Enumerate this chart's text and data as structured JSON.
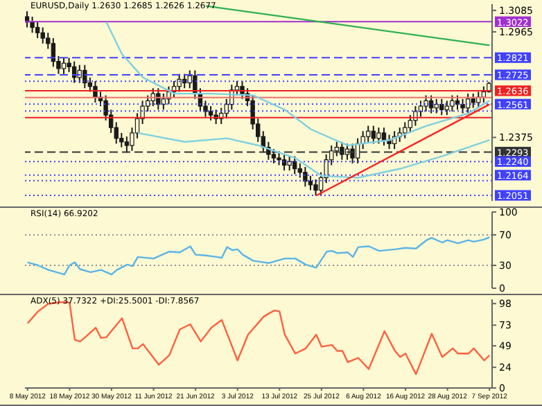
{
  "chart_data": [
    {
      "type": "candlestick",
      "title": "EURUSD,Daily  1.2630 1.2685 1.2626 1.2677",
      "color": "#1a1a1a",
      "ohlc": [
        [
          1.305,
          1.308,
          1.299,
          1.302
        ],
        [
          1.302,
          1.305,
          1.296,
          1.299
        ],
        [
          1.299,
          1.302,
          1.293,
          1.296
        ],
        [
          1.296,
          1.299,
          1.29,
          1.293
        ],
        [
          1.293,
          1.296,
          1.287,
          1.29
        ],
        [
          1.29,
          1.293,
          1.277,
          1.28
        ],
        [
          1.28,
          1.283,
          1.273,
          1.276
        ],
        [
          1.276,
          1.282,
          1.273,
          1.279
        ],
        [
          1.279,
          1.282,
          1.274,
          1.277
        ],
        [
          1.277,
          1.28,
          1.268,
          1.271
        ],
        [
          1.271,
          1.278,
          1.268,
          1.275
        ],
        [
          1.275,
          1.278,
          1.265,
          1.268
        ],
        [
          1.268,
          1.271,
          1.263,
          1.266
        ],
        [
          1.266,
          1.269,
          1.257,
          1.26
        ],
        [
          1.26,
          1.263,
          1.255,
          1.258
        ],
        [
          1.258,
          1.261,
          1.247,
          1.25
        ],
        [
          1.25,
          1.253,
          1.24,
          1.243
        ],
        [
          1.243,
          1.246,
          1.234,
          1.237
        ],
        [
          1.237,
          1.24,
          1.232,
          1.235
        ],
        [
          1.235,
          1.238,
          1.229,
          1.233
        ],
        [
          1.233,
          1.243,
          1.23,
          1.24
        ],
        [
          1.24,
          1.251,
          1.237,
          1.248
        ],
        [
          1.248,
          1.258,
          1.245,
          1.255
        ],
        [
          1.255,
          1.261,
          1.252,
          1.258
        ],
        [
          1.258,
          1.265,
          1.255,
          1.262
        ],
        [
          1.262,
          1.265,
          1.253,
          1.256
        ],
        [
          1.256,
          1.262,
          1.253,
          1.259
        ],
        [
          1.259,
          1.266,
          1.256,
          1.263
        ],
        [
          1.263,
          1.269,
          1.26,
          1.266
        ],
        [
          1.266,
          1.273,
          1.263,
          1.27
        ],
        [
          1.27,
          1.273,
          1.265,
          1.268
        ],
        [
          1.268,
          1.275,
          1.265,
          1.272
        ],
        [
          1.272,
          1.275,
          1.259,
          1.262
        ],
        [
          1.262,
          1.265,
          1.252,
          1.255
        ],
        [
          1.255,
          1.258,
          1.249,
          1.252
        ],
        [
          1.252,
          1.255,
          1.247,
          1.25
        ],
        [
          1.25,
          1.253,
          1.245,
          1.248
        ],
        [
          1.248,
          1.254,
          1.245,
          1.251
        ],
        [
          1.251,
          1.259,
          1.248,
          1.256
        ],
        [
          1.256,
          1.267,
          1.253,
          1.264
        ],
        [
          1.264,
          1.269,
          1.261,
          1.266
        ],
        [
          1.266,
          1.269,
          1.259,
          1.262
        ],
        [
          1.262,
          1.265,
          1.255,
          1.258
        ],
        [
          1.258,
          1.261,
          1.242,
          1.245
        ],
        [
          1.245,
          1.248,
          1.235,
          1.238
        ],
        [
          1.238,
          1.241,
          1.229,
          1.232
        ],
        [
          1.232,
          1.235,
          1.225,
          1.228
        ],
        [
          1.228,
          1.231,
          1.223,
          1.226
        ],
        [
          1.226,
          1.229,
          1.222,
          1.225
        ],
        [
          1.225,
          1.228,
          1.219,
          1.222
        ],
        [
          1.222,
          1.227,
          1.219,
          1.224
        ],
        [
          1.224,
          1.227,
          1.217,
          1.22
        ],
        [
          1.22,
          1.223,
          1.215,
          1.218
        ],
        [
          1.218,
          1.221,
          1.21,
          1.213
        ],
        [
          1.213,
          1.216,
          1.208,
          1.211
        ],
        [
          1.211,
          1.214,
          1.205,
          1.208
        ],
        [
          1.208,
          1.218,
          1.205,
          1.215
        ],
        [
          1.215,
          1.228,
          1.212,
          1.225
        ],
        [
          1.225,
          1.233,
          1.222,
          1.23
        ],
        [
          1.23,
          1.235,
          1.227,
          1.232
        ],
        [
          1.232,
          1.235,
          1.225,
          1.228
        ],
        [
          1.228,
          1.234,
          1.225,
          1.231
        ],
        [
          1.231,
          1.234,
          1.223,
          1.226
        ],
        [
          1.226,
          1.237,
          1.223,
          1.234
        ],
        [
          1.234,
          1.241,
          1.231,
          1.238
        ],
        [
          1.238,
          1.244,
          1.235,
          1.241
        ],
        [
          1.241,
          1.244,
          1.234,
          1.237
        ],
        [
          1.237,
          1.243,
          1.234,
          1.24
        ],
        [
          1.24,
          1.243,
          1.233,
          1.236
        ],
        [
          1.236,
          1.239,
          1.231,
          1.234
        ],
        [
          1.234,
          1.241,
          1.231,
          1.238
        ],
        [
          1.238,
          1.243,
          1.235,
          1.24
        ],
        [
          1.24,
          1.246,
          1.237,
          1.243
        ],
        [
          1.243,
          1.25,
          1.24,
          1.247
        ],
        [
          1.247,
          1.255,
          1.244,
          1.252
        ],
        [
          1.252,
          1.258,
          1.249,
          1.255
        ],
        [
          1.255,
          1.261,
          1.252,
          1.258
        ],
        [
          1.258,
          1.261,
          1.251,
          1.254
        ],
        [
          1.254,
          1.259,
          1.251,
          1.256
        ],
        [
          1.256,
          1.259,
          1.25,
          1.253
        ],
        [
          1.253,
          1.258,
          1.25,
          1.255
        ],
        [
          1.255,
          1.261,
          1.252,
          1.258
        ],
        [
          1.258,
          1.261,
          1.253,
          1.256
        ],
        [
          1.256,
          1.259,
          1.251,
          1.254
        ],
        [
          1.254,
          1.262,
          1.251,
          1.259
        ],
        [
          1.259,
          1.262,
          1.254,
          1.257
        ],
        [
          1.257,
          1.263,
          1.254,
          1.26
        ],
        [
          1.26,
          1.266,
          1.257,
          1.263
        ],
        [
          1.263,
          1.2685,
          1.2626,
          1.2677
        ]
      ],
      "series": [
        {
          "type": "line",
          "color": "#7fd0e0",
          "values": [
            null,
            null,
            null,
            null,
            null,
            null,
            null,
            null,
            null,
            null,
            null,
            null,
            null,
            null,
            null,
            1.302,
            null,
            null,
            1.284,
            null,
            null,
            null,
            1.271,
            null,
            null,
            null,
            null,
            null,
            1.262,
            null,
            null,
            null,
            null,
            null,
            null,
            1.262,
            null,
            null,
            null,
            null,
            null,
            null,
            null,
            1.261,
            null,
            null,
            null,
            null,
            null,
            1.253,
            null,
            null,
            null,
            null,
            1.242,
            null,
            null,
            null,
            null,
            null,
            null,
            1.233,
            null,
            null,
            null,
            null,
            null,
            null,
            null,
            1.236,
            null,
            null,
            null,
            null,
            null,
            null,
            1.244,
            null,
            null,
            null,
            null,
            null,
            null,
            null,
            1.251,
            null,
            null,
            null,
            1.258
          ]
        },
        {
          "type": "line",
          "color": "#7fd0e0",
          "values": [
            null,
            null,
            null,
            null,
            null,
            null,
            null,
            null,
            null,
            null,
            null,
            null,
            null,
            null,
            null,
            null,
            null,
            null,
            null,
            null,
            null,
            1.24,
            null,
            null,
            null,
            null,
            null,
            null,
            null,
            null,
            1.235,
            null,
            null,
            null,
            null,
            null,
            null,
            null,
            1.237,
            null,
            null,
            null,
            null,
            null,
            1.233,
            null,
            null,
            null,
            null,
            null,
            null,
            1.226,
            null,
            null,
            null,
            null,
            1.216,
            null,
            null,
            null,
            null,
            null,
            null,
            1.215,
            null,
            null,
            null,
            null,
            null,
            null,
            null,
            1.22,
            null,
            null,
            null,
            null,
            null,
            null,
            null,
            1.227,
            null,
            null,
            null,
            null,
            null,
            null,
            null,
            null,
            1.236
          ]
        },
        {
          "type": "line",
          "color": "#ff2020",
          "values": [
            null,
            null,
            null,
            null,
            null,
            null,
            null,
            null,
            null,
            null,
            null,
            null,
            null,
            null,
            null,
            null,
            null,
            null,
            null,
            null,
            null,
            null,
            null,
            null,
            null,
            null,
            null,
            null,
            null,
            null,
            null,
            null,
            null,
            null,
            null,
            null,
            null,
            null,
            null,
            null,
            null,
            null,
            null,
            null,
            null,
            null,
            null,
            null,
            null,
            null,
            null,
            null,
            null,
            null,
            null,
            1.205,
            null,
            null,
            null,
            null,
            null,
            null,
            null,
            null,
            null,
            null,
            null,
            null,
            null,
            null,
            null,
            null,
            null,
            null,
            null,
            null,
            null,
            null,
            null,
            null,
            null,
            null,
            null,
            null,
            null,
            null,
            null,
            null,
            1.256
          ]
        },
        {
          "type": "line",
          "color": "#30b050",
          "values": [
            null,
            null,
            null,
            null,
            null,
            null,
            null,
            null,
            null,
            null,
            null,
            null,
            null,
            null,
            null,
            null,
            null,
            null,
            null,
            null,
            null,
            null,
            null,
            null,
            null,
            null,
            null,
            null,
            null,
            null,
            null,
            null,
            null,
            null,
            1.311,
            null,
            null,
            null,
            null,
            null,
            null,
            null,
            null,
            null,
            null,
            null,
            null,
            null,
            null,
            null,
            null,
            null,
            null,
            null,
            null,
            null,
            null,
            null,
            null,
            null,
            null,
            null,
            null,
            null,
            null,
            null,
            null,
            null,
            null,
            null,
            null,
            null,
            null,
            null,
            null,
            null,
            null,
            null,
            null,
            null,
            null,
            null,
            null,
            null,
            null,
            null,
            null,
            null,
            1.289
          ]
        }
      ],
      "ylim": [
        1.202,
        1.312
      ],
      "yticks": [
        1.3085,
        1.2965,
        1.2375
      ],
      "ref_lines": [
        {
          "axis": "y",
          "value": 1.3022,
          "label": "1.3022",
          "color": "#a030d0",
          "line_style": "solid"
        },
        {
          "axis": "y",
          "value": 1.2821,
          "label": "1.2821",
          "color": "#4040ff",
          "line_style": "dashed"
        },
        {
          "axis": "y",
          "value": 1.2725,
          "label": "1.2725",
          "color": "#4040ff",
          "line_style": "dashed"
        },
        {
          "axis": "y",
          "value": 1.2689,
          "color": "#4040ff",
          "line_style": "dotted"
        },
        {
          "axis": "y",
          "value": 1.2636,
          "label": "1.2636",
          "color": "#f02020",
          "line_style": "solid"
        },
        {
          "axis": "y",
          "value": 1.2598,
          "color": "#f07070",
          "line_style": "solid"
        },
        {
          "axis": "y",
          "value": 1.2561,
          "label": "1.2561",
          "color": "#4040ff",
          "line_style": "dotted"
        },
        {
          "axis": "y",
          "value": 1.2523,
          "color": "#4040ff",
          "line_style": "dotted"
        },
        {
          "axis": "y",
          "value": 1.2486,
          "color": "#f02020",
          "line_style": "solid"
        },
        {
          "axis": "y",
          "value": 1.2293,
          "label": "1.2293",
          "color": "#333333",
          "line_style": "dashed"
        },
        {
          "axis": "y",
          "value": 1.224,
          "label": "1.2240",
          "color": "#4040ff",
          "line_style": "dotted"
        },
        {
          "axis": "y",
          "value": 1.2164,
          "label": "1.2164",
          "color": "#4040ff",
          "line_style": "dotted"
        },
        {
          "axis": "y",
          "value": 1.2133,
          "color": "#4040ff",
          "line_style": "dotted"
        },
        {
          "axis": "y",
          "value": 1.2051,
          "label": "1.2051",
          "color": "#4040ff",
          "line_style": "dotted"
        }
      ],
      "tick_labels": "y"
    },
    {
      "type": "line",
      "title": "RSI(14) 66.9202",
      "series": [
        {
          "color": "#5ab4e6",
          "values": [
            34,
            null,
            30,
            null,
            24,
            null,
            null,
            18,
            30,
            34,
            25,
            null,
            21,
            null,
            24,
            null,
            18,
            24,
            null,
            31,
            29,
            41,
            null,
            null,
            39,
            null,
            null,
            48,
            null,
            47,
            null,
            55,
            44,
            null,
            43,
            null,
            41,
            40,
            54,
            50,
            51,
            44,
            null,
            36,
            null,
            34,
            33,
            null,
            null,
            39,
            null,
            39,
            null,
            31,
            null,
            27,
            null,
            48,
            49,
            46,
            null,
            47,
            41,
            54,
            null,
            55,
            null,
            49,
            null,
            null,
            51,
            null,
            53,
            null,
            52,
            null,
            63,
            66,
            null,
            60,
            63,
            null,
            59,
            null,
            63,
            61,
            null,
            64,
            67
          ]
        }
      ],
      "ylim": [
        0,
        100
      ],
      "yticks": [
        0,
        30,
        70,
        100
      ],
      "ref_lines": [
        {
          "axis": "y",
          "value": 70,
          "color": "#909090",
          "line_style": "dotted"
        },
        {
          "axis": "y",
          "value": 30,
          "color": "#909090",
          "line_style": "dotted"
        }
      ],
      "tick_labels": "y"
    },
    {
      "type": "line",
      "title": "ADX(5) 37.7322 +DI:25.5001 -DI:7.8567",
      "categories": [
        "8 May 2012",
        null,
        null,
        null,
        null,
        null,
        null,
        null,
        "18 May 2012",
        null,
        null,
        null,
        null,
        null,
        null,
        null,
        "30 May 2012",
        null,
        null,
        null,
        null,
        null,
        null,
        null,
        "11 Jun 2012",
        null,
        null,
        null,
        null,
        null,
        null,
        null,
        "21 Jun 2012",
        null,
        null,
        null,
        null,
        null,
        null,
        null,
        "3 Jul 2012",
        null,
        null,
        null,
        null,
        null,
        null,
        null,
        "13 Jul 2012",
        null,
        null,
        null,
        null,
        null,
        null,
        null,
        "25 Jul 2012",
        null,
        null,
        null,
        null,
        null,
        null,
        null,
        "6 Aug 2012",
        null,
        null,
        null,
        null,
        null,
        null,
        null,
        "16 Aug 2012",
        null,
        null,
        null,
        null,
        null,
        null,
        null,
        "28 Aug 2012",
        null,
        null,
        null,
        null,
        null,
        null,
        null,
        "7 Sep 2012"
      ],
      "series": [
        {
          "color": "#ff6040",
          "values": [
            75,
            null,
            89,
            null,
            98,
            null,
            null,
            100,
            99,
            56,
            54,
            59,
            null,
            70,
            58,
            59,
            null,
            null,
            81,
            null,
            46,
            46,
            51,
            null,
            null,
            27,
            null,
            38,
            null,
            68,
            null,
            74,
            null,
            54,
            null,
            70,
            null,
            79,
            null,
            null,
            32,
            null,
            62,
            null,
            null,
            83,
            null,
            90,
            89,
            62,
            null,
            40,
            null,
            46,
            null,
            62,
            48,
            null,
            50,
            43,
            43,
            30,
            null,
            35,
            null,
            22,
            null,
            null,
            66,
            null,
            43,
            36,
            40,
            null,
            16,
            null,
            null,
            63,
            null,
            36,
            null,
            46,
            40,
            null,
            40,
            46,
            null,
            32,
            38
          ]
        }
      ],
      "ylim": [
        0,
        103
      ],
      "yticks": [
        0,
        24,
        49,
        73,
        98
      ]
    }
  ]
}
